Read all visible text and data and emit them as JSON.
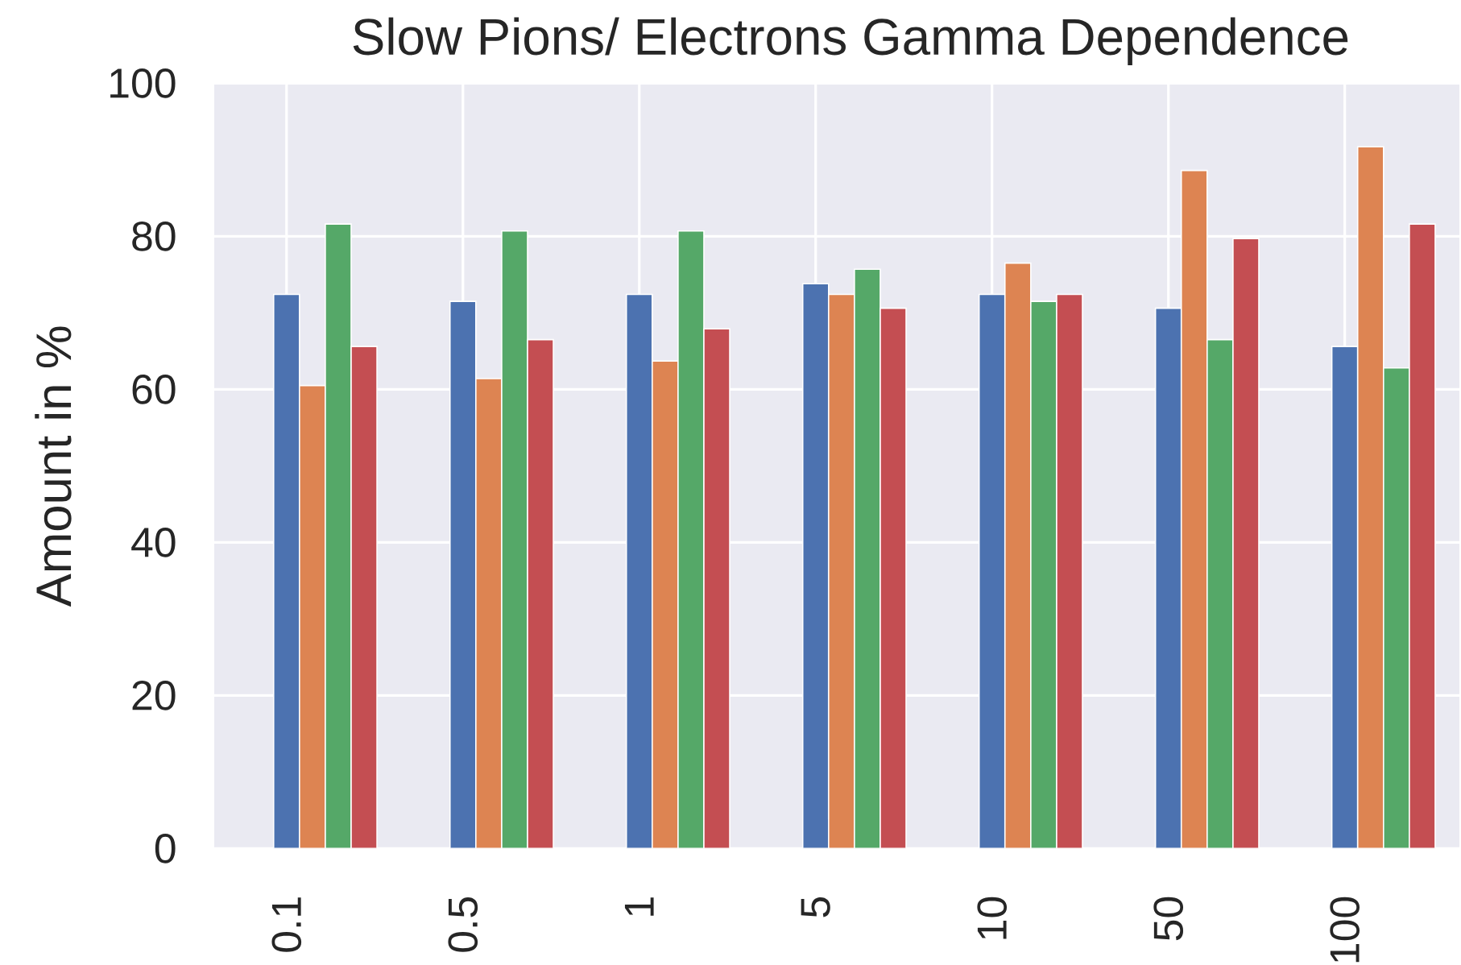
{
  "chart_data": {
    "type": "bar",
    "title": "Slow Pions/ Electrons Gamma Dependence",
    "ylabel": "Amount in %",
    "categories": [
      "0.1",
      "0.5",
      "1",
      "5",
      "10",
      "50",
      "100"
    ],
    "series": [
      {
        "color": "#4c72b0",
        "values": [
          72.4,
          71.5,
          72.4,
          73.8,
          72.4,
          70.6,
          65.6
        ]
      },
      {
        "color": "#dd8452",
        "values": [
          60.5,
          61.4,
          63.7,
          72.4,
          76.5,
          88.6,
          91.7
        ]
      },
      {
        "color": "#55a868",
        "values": [
          81.6,
          80.7,
          80.7,
          75.7,
          71.5,
          66.5,
          62.8
        ]
      },
      {
        "color": "#c44e52",
        "values": [
          65.6,
          66.5,
          67.9,
          70.6,
          72.4,
          79.7,
          81.6
        ]
      }
    ],
    "ylim": [
      0,
      100
    ],
    "yticks": [
      0,
      20,
      40,
      60,
      80,
      100
    ],
    "grid": true
  }
}
